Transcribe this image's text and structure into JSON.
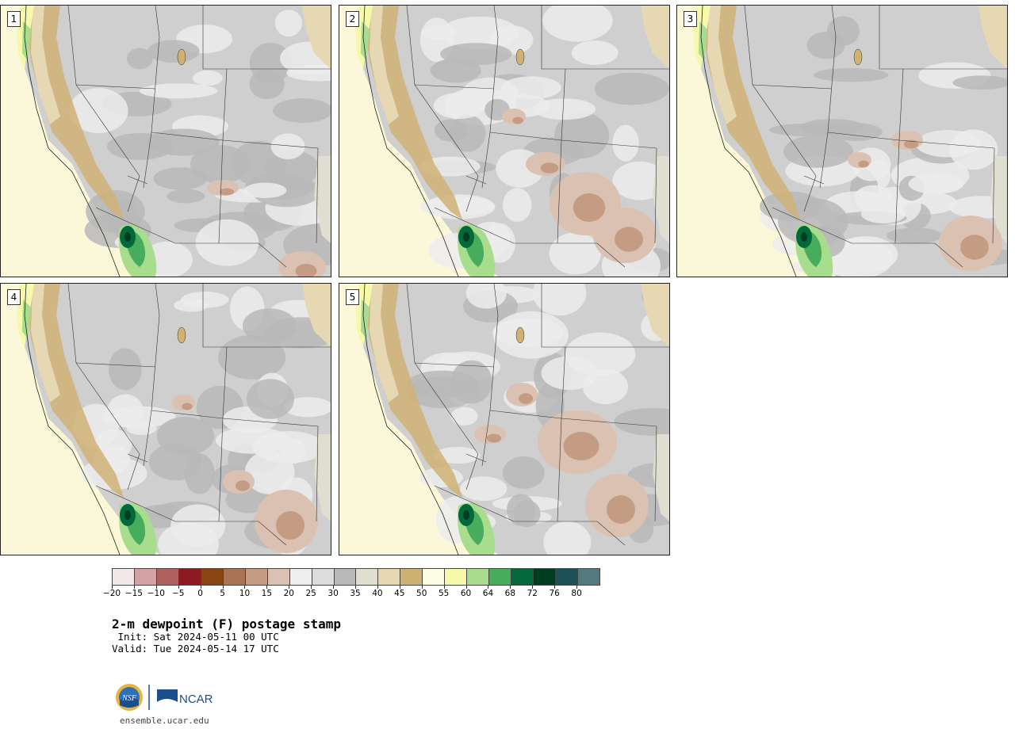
{
  "panels": [
    {
      "number": "1"
    },
    {
      "number": "2"
    },
    {
      "number": "3"
    },
    {
      "number": "4"
    },
    {
      "number": "5"
    }
  ],
  "colorbar": {
    "colors": [
      "#f3e9ea",
      "#d4a2a5",
      "#b0605f",
      "#8c1a22",
      "#8a4513",
      "#a87453",
      "#c49c84",
      "#dbc1b2",
      "#efefef",
      "#dcdcdc",
      "#b9b9b9",
      "#dfded1",
      "#e6d8b3",
      "#cfb174",
      "#fdfde4",
      "#f6f8aa",
      "#a8dd8e",
      "#47ad5c",
      "#02693a",
      "#023d1f",
      "#1d5258",
      "#527a7f"
    ],
    "tick_labels": [
      "−20",
      "−15",
      "−10",
      "−5",
      "0",
      "5",
      "10",
      "15",
      "20",
      "25",
      "30",
      "35",
      "40",
      "45",
      "50",
      "55",
      "60",
      "64",
      "68",
      "72",
      "76",
      "80"
    ]
  },
  "title": "2-m dewpoint (F) postage stamp",
  "init_line": " Init: Sat 2024-05-11 00 UTC",
  "valid_line": "Valid: Tue 2024-05-14 17 UTC",
  "logos": {
    "nsf_text": "NSF",
    "ncar_text": "NCAR"
  },
  "website": "ensemble.ucar.edu"
}
